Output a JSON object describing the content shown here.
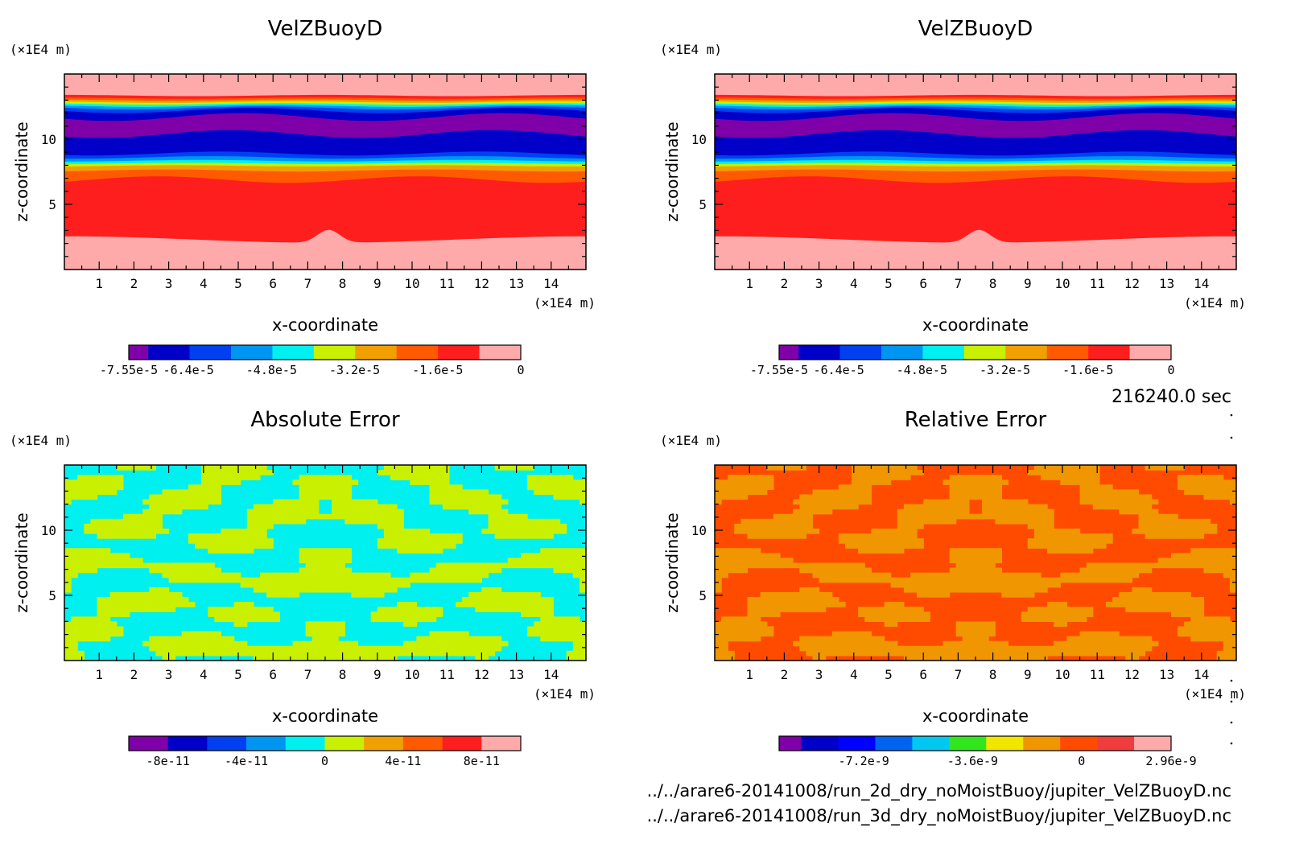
{
  "footer": {
    "time_label": "216240.0 sec",
    "file_a": "../../arare6-20141008/run_2d_dry_noMoistBuoy/jupiter_VelZBuoyD.nc",
    "file_b": "../../arare6-20141008/run_3d_dry_noMoistBuoy/jupiter_VelZBuoyD.nc"
  },
  "chart_data": [
    {
      "type": "heatmap",
      "title": "VelZBuoyD",
      "xlabel": "x-coordinate",
      "ylabel": "z-coordinate",
      "x_unit": "(×1E4 m)",
      "y_unit": "(×1E4 m)",
      "xlim": [
        0,
        15
      ],
      "ylim": [
        0,
        15
      ],
      "x_ticks": [
        "1",
        "2",
        "3",
        "4",
        "5",
        "6",
        "7",
        "8",
        "9",
        "10",
        "11",
        "12",
        "13",
        "14"
      ],
      "y_ticks": [
        "5",
        "10"
      ],
      "field": "vertical bands: near 0 above z≈13.3 and below z≈2.3 (with a bump to z≈3.5 at x≈7.6), -1.6e-5 layer at z≈7-7.5, -7.55e-5 minimum (purple) at z≈11-12",
      "colorbar": {
        "colors": [
          "#7f00a8",
          "#0000c8",
          "#0040f0",
          "#0095f0",
          "#00f0f0",
          "#c8f000",
          "#f0a000",
          "#ff5a00",
          "#ff1e1e",
          "#ffaaaa"
        ],
        "tick_labels": [
          "-7.55e-5",
          "-6.4e-5",
          "-4.8e-5",
          "-3.2e-5",
          "-1.6e-5",
          "0"
        ],
        "tick_values": [
          -7.55e-05,
          -6.4e-05,
          -4.8e-05,
          -3.2e-05,
          -1.6e-05,
          0
        ],
        "range": [
          -7.55e-05,
          0
        ]
      }
    },
    {
      "type": "heatmap",
      "title": "VelZBuoyD",
      "xlabel": "x-coordinate",
      "ylabel": "z-coordinate",
      "x_unit": "(×1E4 m)",
      "y_unit": "(×1E4 m)",
      "xlim": [
        0,
        15
      ],
      "ylim": [
        0,
        15
      ],
      "x_ticks": [
        "1",
        "2",
        "3",
        "4",
        "5",
        "6",
        "7",
        "8",
        "9",
        "10",
        "11",
        "12",
        "13",
        "14"
      ],
      "y_ticks": [
        "5",
        "10"
      ],
      "field": "identical to the first panel",
      "colorbar": {
        "colors": [
          "#7f00a8",
          "#0000c8",
          "#0040f0",
          "#0095f0",
          "#00f0f0",
          "#c8f000",
          "#f0a000",
          "#ff5a00",
          "#ff1e1e",
          "#ffaaaa"
        ],
        "tick_labels": [
          "-7.55e-5",
          "-6.4e-5",
          "-4.8e-5",
          "-3.2e-5",
          "-1.6e-5",
          "0"
        ],
        "tick_values": [
          -7.55e-05,
          -6.4e-05,
          -4.8e-05,
          -3.2e-05,
          -1.6e-05,
          0
        ],
        "range": [
          -7.55e-05,
          0
        ]
      }
    },
    {
      "type": "heatmap",
      "title": "Absolute Error",
      "xlabel": "x-coordinate",
      "ylabel": "z-coordinate",
      "x_unit": "(×1E4 m)",
      "y_unit": "(×1E4 m)",
      "xlim": [
        0,
        15
      ],
      "ylim": [
        0,
        15
      ],
      "x_ticks": [
        "1",
        "2",
        "3",
        "4",
        "5",
        "6",
        "7",
        "8",
        "9",
        "10",
        "11",
        "12",
        "13",
        "14"
      ],
      "y_ticks": [
        "5",
        "10"
      ],
      "field": "noise-like pattern alternating between the 0 (cyan) and +2e-11 (yellow-green) levels, mirror-symmetric about x≈7.5",
      "colorbar": {
        "colors": [
          "#7f00a8",
          "#0000c8",
          "#0040f0",
          "#0095f0",
          "#00f0f0",
          "#c8f000",
          "#f0a000",
          "#ff5a00",
          "#ff1e1e",
          "#ffaaaa"
        ],
        "tick_labels": [
          "-8e-11",
          "-4e-11",
          "0",
          "4e-11",
          "8e-11"
        ],
        "tick_values": [
          -8e-11,
          -4e-11,
          0,
          4e-11,
          8e-11
        ],
        "range": [
          -1e-10,
          1e-10
        ]
      }
    },
    {
      "type": "heatmap",
      "title": "Relative Error",
      "xlabel": "x-coordinate",
      "ylabel": "z-coordinate",
      "x_unit": "(×1E4 m)",
      "y_unit": "(×1E4 m)",
      "xlim": [
        0,
        15
      ],
      "ylim": [
        0,
        15
      ],
      "x_ticks": [
        "1",
        "2",
        "3",
        "4",
        "5",
        "6",
        "7",
        "8",
        "9",
        "10",
        "11",
        "12",
        "13",
        "14"
      ],
      "y_ticks": [
        "5",
        "10"
      ],
      "field": "noise-like pattern alternating between the two levels just above and below 0 (orange and red-orange), mirror-symmetric about x≈7.5",
      "colorbar": {
        "colors": [
          "#7f00a8",
          "#0000c8",
          "#0000ff",
          "#0064f0",
          "#00c8f0",
          "#32e61e",
          "#f0e600",
          "#f09600",
          "#ff4b00",
          "#f03c3c",
          "#ffaaaa"
        ],
        "tick_labels": [
          "-7.2e-9",
          "-3.6e-9",
          "0",
          "2.96e-9"
        ],
        "tick_values": [
          -7.2e-09,
          -3.6e-09,
          0,
          2.96e-09
        ],
        "range": [
          -1e-08,
          2.96e-09
        ]
      }
    }
  ]
}
